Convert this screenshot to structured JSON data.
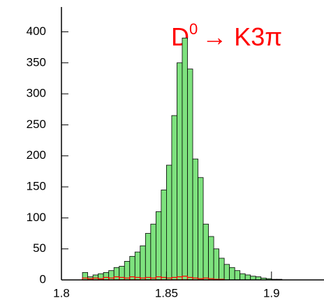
{
  "chart_data": {
    "type": "histogram",
    "annotations": [
      {
        "parts": [
          "D",
          "0",
          "→ K3π"
        ],
        "color": "#ff0000"
      }
    ],
    "bins": [
      1.8,
      1.8025,
      1.805,
      1.8075,
      1.81,
      1.8125,
      1.815,
      1.8175,
      1.82,
      1.8225,
      1.825,
      1.8275,
      1.83,
      1.8325,
      1.835,
      1.8375,
      1.84,
      1.8425,
      1.845,
      1.8475,
      1.85,
      1.8525,
      1.855,
      1.8575,
      1.86,
      1.8625,
      1.865,
      1.8675,
      1.87,
      1.8725,
      1.875,
      1.8775,
      1.88,
      1.8825,
      1.885,
      1.8875,
      1.89,
      1.8925,
      1.895,
      1.8975,
      1.9,
      1.9025,
      1.905,
      1.9075,
      1.91,
      1.9125,
      1.915,
      1.9175,
      1.92,
      1.9225,
      1.925
    ],
    "series": [
      {
        "color": "#7ee27e",
        "values": [
          0,
          0,
          0,
          0,
          12,
          5,
          8,
          10,
          12,
          15,
          20,
          22,
          30,
          38,
          45,
          55,
          75,
          90,
          110,
          145,
          185,
          265,
          350,
          390,
          340,
          195,
          165,
          90,
          70,
          50,
          35,
          25,
          20,
          15,
          10,
          8,
          6,
          5,
          3,
          2,
          1,
          1,
          0,
          0,
          0,
          0,
          0,
          0,
          0,
          0
        ]
      },
      {
        "color": "#ff0000",
        "values": [
          0,
          0,
          0,
          0,
          3,
          2,
          3,
          2,
          4,
          3,
          5,
          4,
          3,
          5,
          4,
          3,
          4,
          3,
          5,
          4,
          3,
          4,
          5,
          6,
          4,
          3,
          2,
          3,
          2,
          1,
          1,
          0,
          0,
          0,
          0,
          0,
          0,
          0,
          0,
          0,
          0,
          0,
          0,
          0,
          0,
          0,
          0,
          0,
          0,
          0
        ]
      }
    ],
    "xlim": [
      1.8,
      1.925
    ],
    "ylim": [
      0,
      440
    ],
    "xticks": [
      1.8,
      1.85,
      1.9
    ],
    "yticks": [
      0,
      50,
      100,
      150,
      200,
      250,
      300,
      350,
      400
    ]
  }
}
